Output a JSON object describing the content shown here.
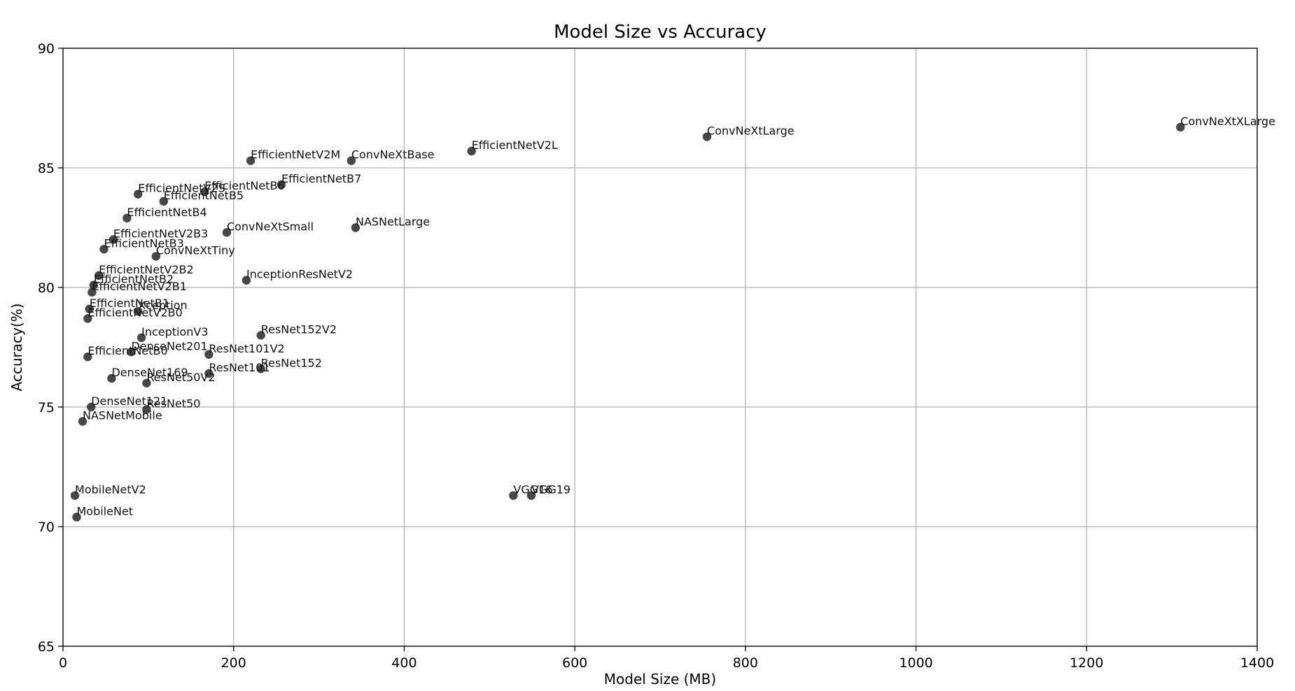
{
  "chart_data": {
    "type": "scatter",
    "title": "Model Size vs Accuracy",
    "xlabel": "Model Size (MB)",
    "ylabel": "Accuracy(%)",
    "xlim": [
      0,
      1400
    ],
    "ylim": [
      65,
      90
    ],
    "xticks": [
      0,
      200,
      400,
      600,
      800,
      1000,
      1200,
      1400
    ],
    "yticks": [
      65,
      70,
      75,
      80,
      85,
      90
    ],
    "grid": true,
    "point_color": "#000000",
    "points": [
      {
        "name": "ConvNeXtXLarge",
        "x": 1310,
        "y": 86.7
      },
      {
        "name": "ConvNeXtLarge",
        "x": 755,
        "y": 86.3
      },
      {
        "name": "EfficientNetV2L",
        "x": 479,
        "y": 85.7
      },
      {
        "name": "EfficientNetV2M",
        "x": 220,
        "y": 85.3
      },
      {
        "name": "ConvNeXtBase",
        "x": 338,
        "y": 85.3
      },
      {
        "name": "EfficientNetB7",
        "x": 256,
        "y": 84.3
      },
      {
        "name": "EfficientNetB6",
        "x": 166,
        "y": 84.0
      },
      {
        "name": "EfficientNetV2S",
        "x": 88,
        "y": 83.9
      },
      {
        "name": "EfficientNetB5",
        "x": 118,
        "y": 83.6
      },
      {
        "name": "EfficientNetB4",
        "x": 75,
        "y": 82.9
      },
      {
        "name": "NASNetLarge",
        "x": 343,
        "y": 82.5
      },
      {
        "name": "ConvNeXtSmall",
        "x": 192,
        "y": 82.3
      },
      {
        "name": "EfficientNetV2B3",
        "x": 59,
        "y": 82.0
      },
      {
        "name": "EfficientNetB3",
        "x": 48,
        "y": 81.6
      },
      {
        "name": "ConvNeXtTiny",
        "x": 109,
        "y": 81.3
      },
      {
        "name": "EfficientNetV2B2",
        "x": 42,
        "y": 80.5
      },
      {
        "name": "InceptionResNetV2",
        "x": 215,
        "y": 80.3
      },
      {
        "name": "EfficientNetB2",
        "x": 36,
        "y": 80.1
      },
      {
        "name": "EfficientNetV2B1",
        "x": 34,
        "y": 79.8
      },
      {
        "name": "EfficientNetB1",
        "x": 31,
        "y": 79.1
      },
      {
        "name": "Xception",
        "x": 88,
        "y": 79.0
      },
      {
        "name": "EfficientNetV2B0",
        "x": 29,
        "y": 78.7
      },
      {
        "name": "ResNet152V2",
        "x": 232,
        "y": 78.0
      },
      {
        "name": "InceptionV3",
        "x": 92,
        "y": 77.9
      },
      {
        "name": "DenseNet201",
        "x": 80,
        "y": 77.3
      },
      {
        "name": "ResNet101V2",
        "x": 171,
        "y": 77.2
      },
      {
        "name": "EfficientNetB0",
        "x": 29,
        "y": 77.1
      },
      {
        "name": "ResNet152",
        "x": 232,
        "y": 76.6
      },
      {
        "name": "ResNet101",
        "x": 171,
        "y": 76.4
      },
      {
        "name": "DenseNet169",
        "x": 57,
        "y": 76.2
      },
      {
        "name": "ResNet50V2",
        "x": 98,
        "y": 76.0
      },
      {
        "name": "DenseNet121",
        "x": 33,
        "y": 75.0
      },
      {
        "name": "ResNet50",
        "x": 98,
        "y": 74.9
      },
      {
        "name": "NASNetMobile",
        "x": 23,
        "y": 74.4
      },
      {
        "name": "MobileNetV2",
        "x": 14,
        "y": 71.3
      },
      {
        "name": "VGG16",
        "x": 528,
        "y": 71.3
      },
      {
        "name": "VGG19",
        "x": 549,
        "y": 71.3
      },
      {
        "name": "MobileNet",
        "x": 16,
        "y": 70.4
      }
    ]
  }
}
